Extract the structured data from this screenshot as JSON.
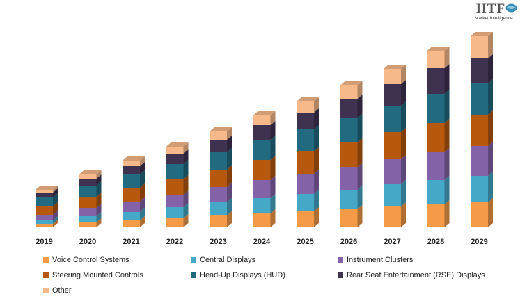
{
  "logo": {
    "main": "HTF",
    "sub": "Market Intelligence"
  },
  "colors": {
    "voice": "#f59a46",
    "central": "#45a8c6",
    "instrument": "#8462a8",
    "steering": "#b6580d",
    "hud": "#216a80",
    "rse": "#3f3150",
    "other": "#f7b98a"
  },
  "chart_data": {
    "type": "bar",
    "stacked": true,
    "style": "3d-columns",
    "categories": [
      "2019",
      "2020",
      "2021",
      "2022",
      "2023",
      "2024",
      "2025",
      "2026",
      "2027",
      "2028",
      "2029"
    ],
    "series": [
      {
        "name": "Voice Control Systems",
        "color": "#f59a46",
        "values": [
          5,
          7,
          10,
          13,
          17,
          20,
          23,
          26,
          30,
          33,
          36
        ]
      },
      {
        "name": "Central Displays",
        "color": "#45a8c6",
        "values": [
          5,
          9,
          12,
          16,
          19,
          22,
          25,
          28,
          32,
          35,
          38
        ]
      },
      {
        "name": "Instrument Clusters",
        "color": "#8462a8",
        "values": [
          8,
          12,
          15,
          18,
          22,
          26,
          29,
          32,
          36,
          40,
          43
        ]
      },
      {
        "name": "Steering Mounted Controls",
        "color": "#b6580d",
        "values": [
          12,
          16,
          20,
          22,
          25,
          29,
          32,
          36,
          39,
          42,
          45
        ]
      },
      {
        "name": "Head-Up Displays (HUD)",
        "color": "#216a80",
        "values": [
          13,
          16,
          19,
          22,
          25,
          29,
          32,
          35,
          38,
          42,
          45
        ]
      },
      {
        "name": "Rear Seat Entertainment (RSE) Displays",
        "color": "#3f3150",
        "values": [
          7,
          10,
          12,
          15,
          18,
          21,
          24,
          28,
          31,
          37,
          36
        ]
      },
      {
        "name": "Other",
        "color": "#f7b98a",
        "values": [
          4,
          6,
          8,
          10,
          12,
          14,
          16,
          19,
          22,
          25,
          32
        ]
      }
    ],
    "ylim": [
      0,
      290
    ],
    "grid": false,
    "legend_position": "bottom"
  }
}
